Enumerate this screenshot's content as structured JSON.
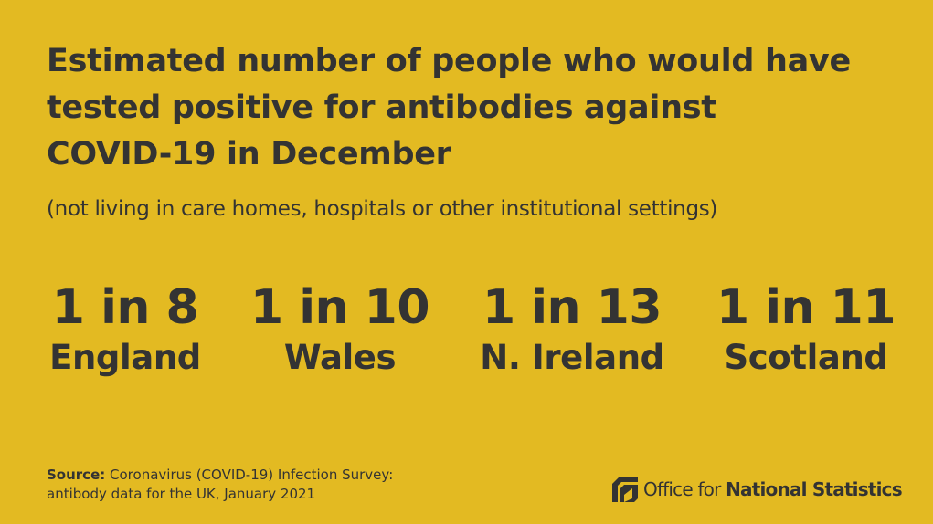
{
  "colors": {
    "background": "#E3BA22",
    "text": "#333333"
  },
  "title": {
    "line1": "Estimated number of people who would have",
    "line2": "tested positive for antibodies against",
    "line3": "COVID-19 in December"
  },
  "subtitle": "(not living in care homes, hospitals or other institutional settings)",
  "stats": [
    {
      "value": "1 in 8",
      "label": "England"
    },
    {
      "value": "1 in 10",
      "label": "Wales"
    },
    {
      "value": "1 in 13",
      "label": "N. Ireland"
    },
    {
      "value": "1 in 11",
      "label": "Scotland"
    }
  ],
  "source": {
    "label": "Source:",
    "line1": "Coronavirus (COVID-19) Infection Survey:",
    "line2": "antibody data for the UK, January 2021"
  },
  "logo": {
    "icon": "ons-logo-icon",
    "text_plain": "Office for ",
    "text_bold": "National Statistics"
  }
}
